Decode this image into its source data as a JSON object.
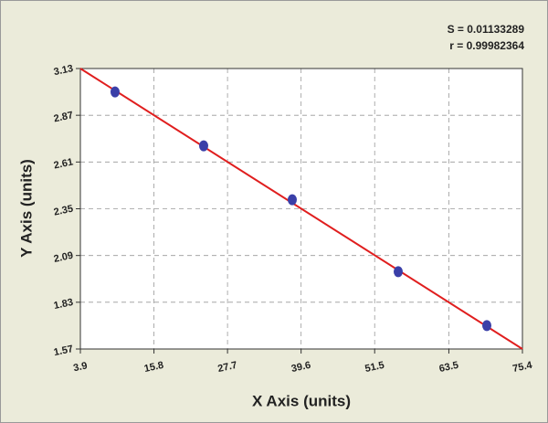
{
  "chart_data": {
    "type": "scatter",
    "x_label": "X Axis (units)",
    "y_label": "Y Axis (units)",
    "annotations": [
      "S = 0.01133289",
      "r = 0.99982364"
    ],
    "series": [
      {
        "x": [
          9.51,
          23.84,
          38.17,
          55.31,
          69.64
        ],
        "values": [
          3.0,
          2.7,
          2.4,
          2.0,
          1.7
        ],
        "color": "#3a3fa8"
      }
    ],
    "fit_line": {
      "x": [
        3.9,
        75.4
      ],
      "values": [
        3.13,
        1.57
      ],
      "color": "#e01e1e"
    },
    "xlim": [
      3.9,
      75.4
    ],
    "xticks": [
      3.9,
      15.8,
      27.7,
      39.6,
      51.5,
      63.5,
      75.4
    ],
    "ylim": [
      1.57,
      3.13
    ],
    "yticks": [
      3.13,
      2.87,
      2.61,
      2.35,
      2.09,
      1.83,
      1.57
    ],
    "grid": true
  }
}
